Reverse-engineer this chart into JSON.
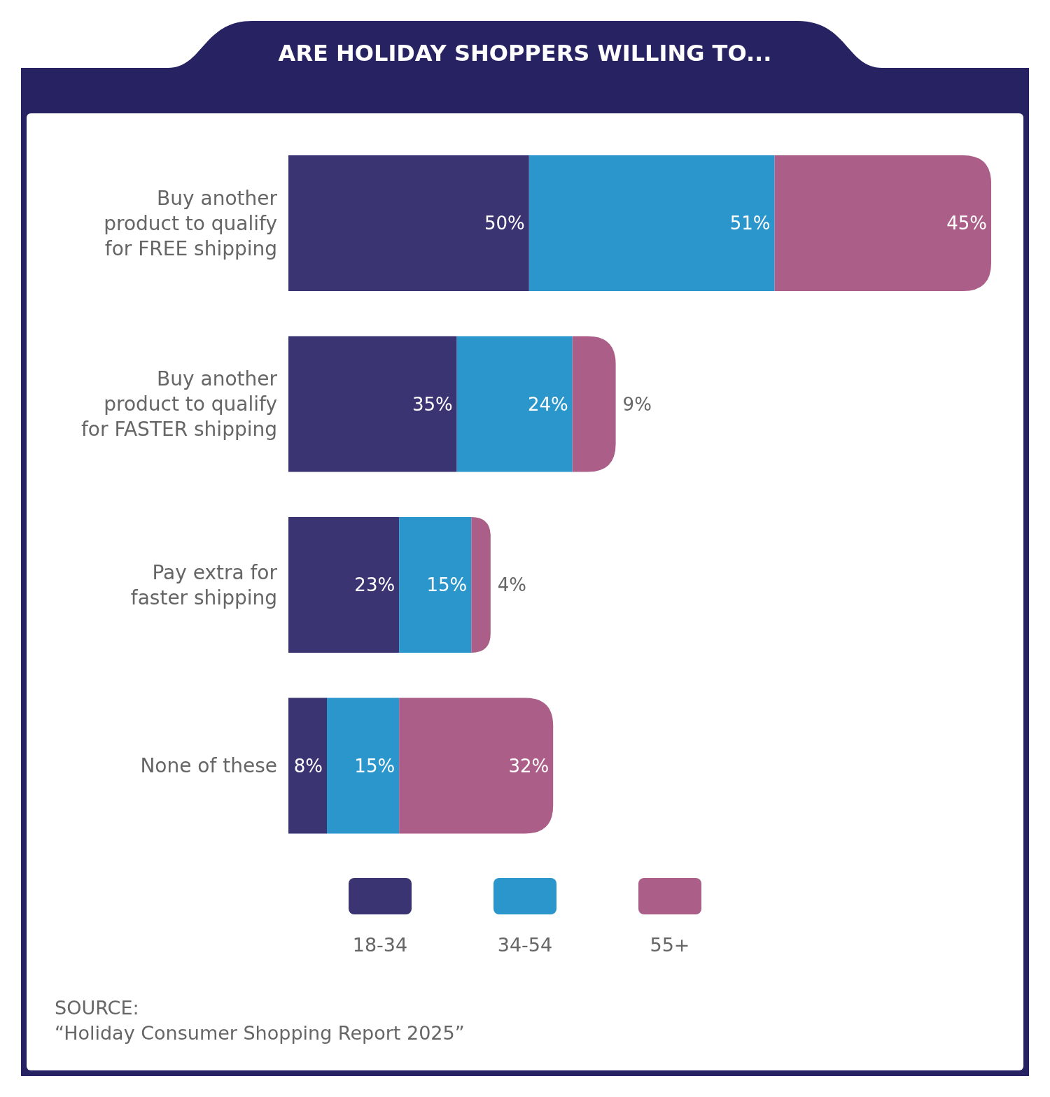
{
  "chart_data": {
    "type": "bar",
    "orientation": "horizontal",
    "stacked": true,
    "title": "ARE HOLIDAY SHOPPERS WILLING TO...",
    "categories": [
      "Buy another\nproduct to qualify\nfor FREE shipping",
      "Buy another\nproduct to qualify\nfor FASTER shipping",
      "Pay extra for\nfaster shipping",
      "None of these"
    ],
    "series": [
      {
        "name": "18-34",
        "color": "#3b3472",
        "values": [
          50,
          35,
          23,
          8
        ],
        "value_labels": [
          "50%",
          "35%",
          "23%",
          "8%"
        ]
      },
      {
        "name": "34-54",
        "color": "#2a96cc",
        "values": [
          51,
          24,
          15,
          15
        ],
        "value_labels": [
          "51%",
          "24%",
          "15%",
          "15%"
        ]
      },
      {
        "name": "55+",
        "color": "#ab5e87",
        "values": [
          45,
          9,
          4,
          32
        ],
        "value_labels": [
          "45%",
          "9%",
          "4%",
          "32%"
        ]
      }
    ],
    "xlim": [
      0,
      146
    ],
    "legend": "bottom",
    "annotations": [
      "SOURCE:\n“Holiday Consumer Shopping Report 2025”"
    ]
  }
}
